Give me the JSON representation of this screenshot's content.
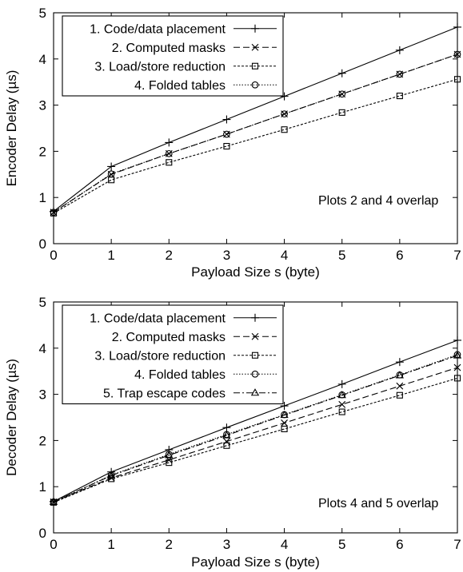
{
  "chart_data": [
    {
      "type": "line",
      "xlabel": "Payload Size s (byte)",
      "ylabel": "Encoder Delay (µs)",
      "xlim": [
        0,
        7
      ],
      "ylim": [
        0,
        5
      ],
      "x_ticks": [
        "0",
        "1",
        "2",
        "3",
        "4",
        "5",
        "6",
        "7"
      ],
      "y_ticks": [
        "0",
        "1",
        "2",
        "3",
        "4",
        "5"
      ],
      "grid": false,
      "legend_position": "top-left",
      "annotation": "Plots 2 and 4 overlap",
      "x": [
        0,
        1,
        2,
        3,
        4,
        5,
        6,
        7
      ],
      "series": [
        {
          "name": "1. Code/data placement",
          "marker": "plus",
          "dash": "solid",
          "values": [
            0.7,
            1.67,
            2.19,
            2.69,
            3.19,
            3.69,
            4.19,
            4.69
          ]
        },
        {
          "name": "2. Computed masks",
          "marker": "x",
          "dash": "dashed",
          "values": [
            0.68,
            1.5,
            1.95,
            2.37,
            2.81,
            3.24,
            3.67,
            4.1
          ]
        },
        {
          "name": "3. Load/store reduction",
          "marker": "square",
          "dash": "dotted-fine",
          "values": [
            0.66,
            1.38,
            1.76,
            2.11,
            2.47,
            2.84,
            3.2,
            3.56
          ]
        },
        {
          "name": "4. Folded tables",
          "marker": "circle",
          "dash": "dotted",
          "values": [
            0.68,
            1.51,
            1.95,
            2.37,
            2.81,
            3.24,
            3.67,
            4.1
          ]
        }
      ]
    },
    {
      "type": "line",
      "xlabel": "Payload Size s (byte)",
      "ylabel": "Decoder Delay (µs)",
      "xlim": [
        0,
        7
      ],
      "ylim": [
        0,
        5
      ],
      "x_ticks": [
        "0",
        "1",
        "2",
        "3",
        "4",
        "5",
        "6",
        "7"
      ],
      "y_ticks": [
        "0",
        "1",
        "2",
        "3",
        "4",
        "5"
      ],
      "grid": false,
      "legend_position": "top-left",
      "annotation": "Plots 4 and 5 overlap",
      "x": [
        0,
        1,
        2,
        3,
        4,
        5,
        6,
        7
      ],
      "series": [
        {
          "name": "1. Code/data placement",
          "marker": "plus",
          "dash": "solid",
          "values": [
            0.68,
            1.32,
            1.8,
            2.28,
            2.75,
            3.22,
            3.7,
            4.17
          ]
        },
        {
          "name": "2. Computed masks",
          "marker": "x",
          "dash": "dashed",
          "values": [
            0.67,
            1.19,
            1.58,
            1.98,
            2.38,
            2.78,
            3.18,
            3.58
          ]
        },
        {
          "name": "3. Load/store reduction",
          "marker": "square",
          "dash": "dotted-fine",
          "values": [
            0.66,
            1.17,
            1.52,
            1.89,
            2.25,
            2.62,
            2.98,
            3.35
          ]
        },
        {
          "name": "4. Folded tables",
          "marker": "circle",
          "dash": "dotted",
          "values": [
            0.67,
            1.25,
            1.7,
            2.13,
            2.56,
            2.99,
            3.42,
            3.86
          ]
        },
        {
          "name": "5. Trap escape codes",
          "marker": "triangle",
          "dash": "dash-dot",
          "values": [
            0.67,
            1.24,
            1.68,
            2.11,
            2.55,
            2.98,
            3.41,
            3.84
          ]
        }
      ]
    }
  ]
}
